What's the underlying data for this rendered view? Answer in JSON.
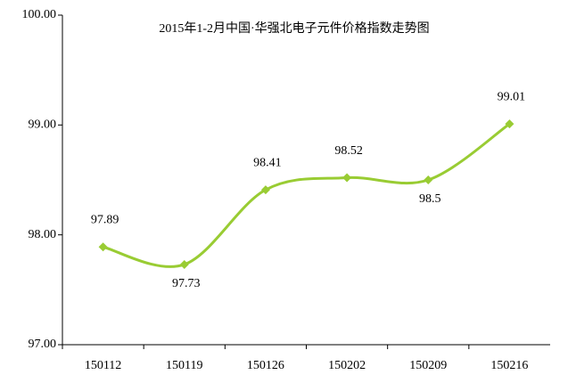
{
  "chart_data": {
    "type": "line",
    "title": "2015年1-2月中国·华强北电子元件价格指数走势图",
    "categories": [
      "150112",
      "150119",
      "150126",
      "150202",
      "150209",
      "150216"
    ],
    "values": [
      97.89,
      97.73,
      98.41,
      98.52,
      98.5,
      99.01
    ],
    "color": "#99cc33",
    "ylim": [
      97,
      100
    ],
    "yticks": [
      {
        "value": 97,
        "label": "97.00"
      },
      {
        "value": 98,
        "label": "98.00"
      },
      {
        "value": 99,
        "label": "99.00"
      },
      {
        "value": 100,
        "label": "100.00"
      }
    ],
    "grid": false
  }
}
